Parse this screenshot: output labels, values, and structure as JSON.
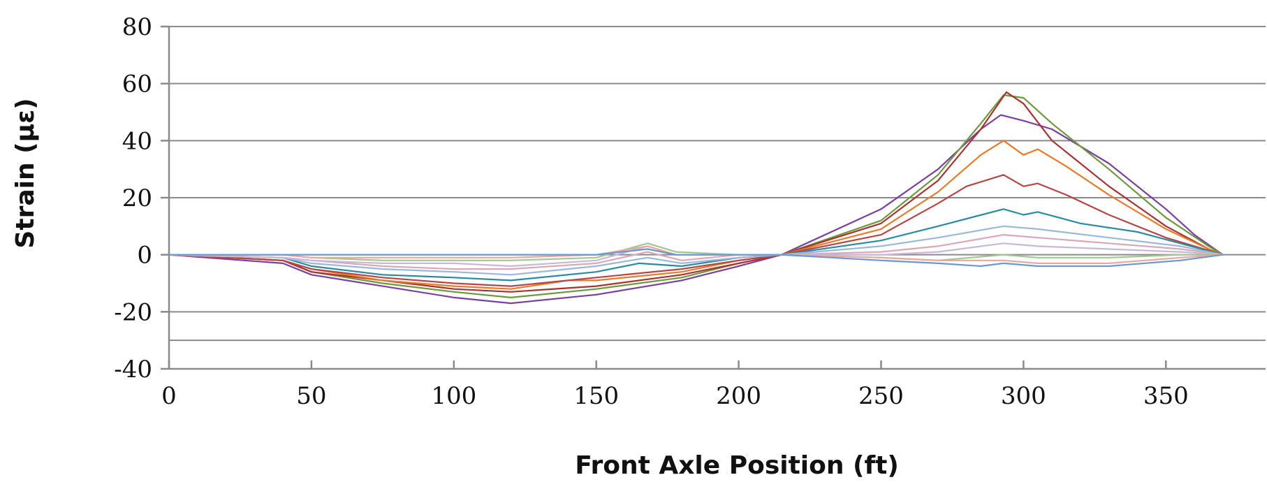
{
  "chart_data": {
    "type": "line",
    "title": "",
    "xlabel": "Front Axle Position (ft)",
    "ylabel": "Strain (µε)",
    "xlim": [
      0,
      385
    ],
    "ylim": [
      -40,
      80
    ],
    "x_ticks": [
      0,
      50,
      100,
      150,
      200,
      250,
      300,
      350
    ],
    "y_ticks": [
      80,
      60,
      40,
      20,
      0,
      -20,
      -40
    ],
    "grid": "horizontal",
    "legend": "none",
    "series": [
      {
        "color": "#7b3fa0",
        "points": [
          [
            0,
            0
          ],
          [
            40,
            -3
          ],
          [
            50,
            -7
          ],
          [
            75,
            -11
          ],
          [
            100,
            -15
          ],
          [
            120,
            -17
          ],
          [
            150,
            -14
          ],
          [
            180,
            -9
          ],
          [
            200,
            -4
          ],
          [
            215,
            0
          ],
          [
            250,
            16
          ],
          [
            270,
            30
          ],
          [
            285,
            44
          ],
          [
            292,
            49
          ],
          [
            300,
            47
          ],
          [
            310,
            44
          ],
          [
            330,
            32
          ],
          [
            350,
            16
          ],
          [
            360,
            7
          ],
          [
            370,
            0
          ]
        ]
      },
      {
        "color": "#6b9a3a",
        "points": [
          [
            0,
            0
          ],
          [
            40,
            -2
          ],
          [
            50,
            -6
          ],
          [
            75,
            -10
          ],
          [
            100,
            -13
          ],
          [
            120,
            -15
          ],
          [
            150,
            -12
          ],
          [
            180,
            -8
          ],
          [
            200,
            -3
          ],
          [
            215,
            0
          ],
          [
            250,
            12
          ],
          [
            270,
            28
          ],
          [
            285,
            46
          ],
          [
            293,
            56
          ],
          [
            300,
            55
          ],
          [
            310,
            46
          ],
          [
            330,
            30
          ],
          [
            350,
            13
          ],
          [
            365,
            3
          ],
          [
            370,
            0
          ]
        ]
      },
      {
        "color": "#a83232",
        "points": [
          [
            0,
            0
          ],
          [
            40,
            -2
          ],
          [
            50,
            -6
          ],
          [
            75,
            -9
          ],
          [
            100,
            -12
          ],
          [
            120,
            -13
          ],
          [
            150,
            -11
          ],
          [
            180,
            -7
          ],
          [
            200,
            -3
          ],
          [
            215,
            0
          ],
          [
            250,
            11
          ],
          [
            270,
            26
          ],
          [
            285,
            44
          ],
          [
            294,
            57
          ],
          [
            300,
            53
          ],
          [
            310,
            40
          ],
          [
            330,
            24
          ],
          [
            350,
            10
          ],
          [
            365,
            2
          ],
          [
            370,
            0
          ]
        ]
      },
      {
        "color": "#e87a2a",
        "points": [
          [
            0,
            0
          ],
          [
            40,
            -2
          ],
          [
            50,
            -5
          ],
          [
            75,
            -9
          ],
          [
            100,
            -11
          ],
          [
            120,
            -12
          ],
          [
            140,
            -9
          ],
          [
            150,
            -9
          ],
          [
            180,
            -6
          ],
          [
            200,
            -2
          ],
          [
            215,
            0
          ],
          [
            250,
            9
          ],
          [
            270,
            22
          ],
          [
            285,
            35
          ],
          [
            293,
            40
          ],
          [
            300,
            35
          ],
          [
            305,
            37
          ],
          [
            315,
            31
          ],
          [
            330,
            21
          ],
          [
            350,
            9
          ],
          [
            365,
            2
          ],
          [
            370,
            0
          ]
        ]
      },
      {
        "color": "#b84545",
        "points": [
          [
            0,
            0
          ],
          [
            40,
            -2
          ],
          [
            50,
            -5
          ],
          [
            75,
            -8
          ],
          [
            100,
            -10
          ],
          [
            120,
            -11
          ],
          [
            150,
            -8
          ],
          [
            180,
            -5
          ],
          [
            200,
            -2
          ],
          [
            215,
            0
          ],
          [
            250,
            7
          ],
          [
            270,
            18
          ],
          [
            280,
            24
          ],
          [
            293,
            28
          ],
          [
            300,
            24
          ],
          [
            305,
            25
          ],
          [
            315,
            21
          ],
          [
            330,
            14
          ],
          [
            350,
            6
          ],
          [
            370,
            0
          ]
        ]
      },
      {
        "color": "#2a8aa0",
        "points": [
          [
            0,
            0
          ],
          [
            40,
            -1
          ],
          [
            50,
            -4
          ],
          [
            75,
            -7
          ],
          [
            100,
            -8
          ],
          [
            120,
            -9
          ],
          [
            150,
            -6
          ],
          [
            165,
            -3
          ],
          [
            180,
            -4
          ],
          [
            200,
            -1
          ],
          [
            215,
            0
          ],
          [
            250,
            5
          ],
          [
            270,
            10
          ],
          [
            293,
            16
          ],
          [
            300,
            14
          ],
          [
            305,
            15
          ],
          [
            320,
            11
          ],
          [
            340,
            8
          ],
          [
            355,
            4
          ],
          [
            370,
            0
          ]
        ]
      },
      {
        "color": "#9ab8d8",
        "points": [
          [
            0,
            0
          ],
          [
            40,
            -1
          ],
          [
            50,
            -3
          ],
          [
            75,
            -5
          ],
          [
            100,
            -6
          ],
          [
            120,
            -7
          ],
          [
            150,
            -4
          ],
          [
            168,
            -1
          ],
          [
            180,
            -3
          ],
          [
            200,
            -1
          ],
          [
            215,
            0
          ],
          [
            250,
            3
          ],
          [
            270,
            6
          ],
          [
            293,
            10
          ],
          [
            305,
            9
          ],
          [
            330,
            6
          ],
          [
            355,
            3
          ],
          [
            370,
            0
          ]
        ]
      },
      {
        "color": "#d9a8b8",
        "points": [
          [
            0,
            0
          ],
          [
            40,
            -1
          ],
          [
            50,
            -2
          ],
          [
            75,
            -4
          ],
          [
            100,
            -5
          ],
          [
            120,
            -5
          ],
          [
            150,
            -3
          ],
          [
            168,
            1
          ],
          [
            180,
            -2
          ],
          [
            200,
            0
          ],
          [
            215,
            0
          ],
          [
            250,
            1
          ],
          [
            270,
            3
          ],
          [
            293,
            7
          ],
          [
            305,
            6
          ],
          [
            330,
            4
          ],
          [
            355,
            2
          ],
          [
            370,
            0
          ]
        ]
      },
      {
        "color": "#c8b8d8",
        "points": [
          [
            0,
            0
          ],
          [
            40,
            -1
          ],
          [
            50,
            -2
          ],
          [
            75,
            -3
          ],
          [
            100,
            -3
          ],
          [
            120,
            -4
          ],
          [
            150,
            -2
          ],
          [
            168,
            3
          ],
          [
            178,
            0
          ],
          [
            200,
            0
          ],
          [
            215,
            0
          ],
          [
            250,
            0
          ],
          [
            270,
            1
          ],
          [
            293,
            4
          ],
          [
            305,
            3
          ],
          [
            330,
            2
          ],
          [
            355,
            1
          ],
          [
            370,
            0
          ]
        ]
      },
      {
        "color": "#a0c890",
        "points": [
          [
            0,
            0
          ],
          [
            40,
            0
          ],
          [
            50,
            -1
          ],
          [
            75,
            -2
          ],
          [
            100,
            -2
          ],
          [
            120,
            -2
          ],
          [
            150,
            -1
          ],
          [
            168,
            4
          ],
          [
            178,
            1
          ],
          [
            200,
            0
          ],
          [
            215,
            0
          ],
          [
            250,
            -1
          ],
          [
            270,
            -2
          ],
          [
            293,
            0
          ],
          [
            305,
            -1
          ],
          [
            330,
            -1
          ],
          [
            355,
            0
          ],
          [
            370,
            0
          ]
        ]
      },
      {
        "color": "#e8a8a0",
        "points": [
          [
            0,
            0
          ],
          [
            40,
            0
          ],
          [
            50,
            -1
          ],
          [
            75,
            -1
          ],
          [
            100,
            -1
          ],
          [
            120,
            -1
          ],
          [
            150,
            0
          ],
          [
            168,
            3
          ],
          [
            178,
            0
          ],
          [
            200,
            0
          ],
          [
            215,
            0
          ],
          [
            250,
            -1
          ],
          [
            270,
            -2
          ],
          [
            293,
            -2
          ],
          [
            305,
            -3
          ],
          [
            330,
            -3
          ],
          [
            355,
            -1
          ],
          [
            370,
            0
          ]
        ]
      },
      {
        "color": "#6a98d0",
        "points": [
          [
            0,
            0
          ],
          [
            40,
            0
          ],
          [
            50,
            0
          ],
          [
            75,
            0
          ],
          [
            100,
            0
          ],
          [
            120,
            0
          ],
          [
            150,
            0
          ],
          [
            168,
            2
          ],
          [
            178,
            0
          ],
          [
            200,
            0
          ],
          [
            215,
            0
          ],
          [
            250,
            -2
          ],
          [
            270,
            -3
          ],
          [
            285,
            -4
          ],
          [
            293,
            -3
          ],
          [
            305,
            -4
          ],
          [
            330,
            -4
          ],
          [
            355,
            -2
          ],
          [
            370,
            0
          ]
        ]
      }
    ]
  }
}
